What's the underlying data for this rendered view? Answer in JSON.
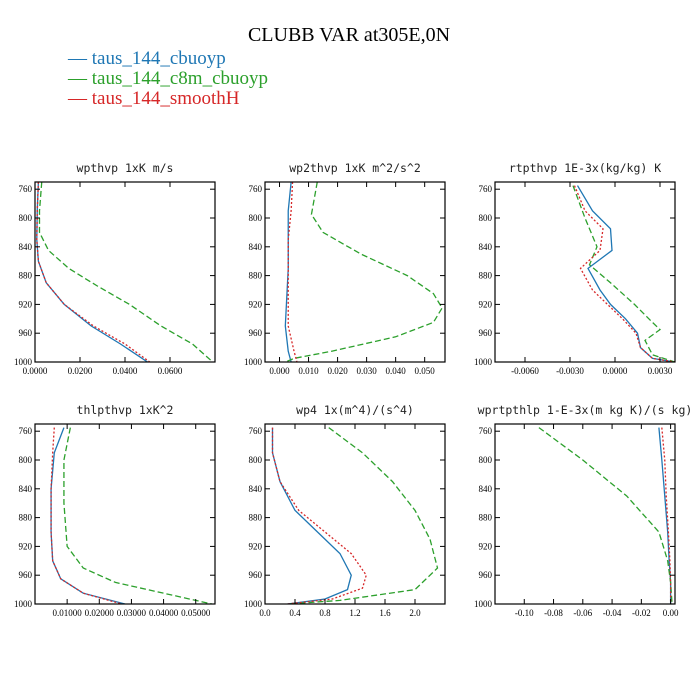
{
  "figure": {
    "title": "CLUBB VAR at305E,0N",
    "legend": [
      {
        "label": "— taus_144_cbuoyp",
        "color": "#1f77b4"
      },
      {
        "label": "— taus_144_c8m_cbuoyp",
        "color": "#2ca02c"
      },
      {
        "label": "— taus_144_smoothH",
        "color": "#d62728"
      }
    ]
  },
  "chart_data": [
    {
      "type": "line",
      "title": "wpthvp   1xK m/s",
      "xlim": [
        0,
        0.08
      ],
      "ylim": [
        1000,
        750
      ],
      "xticks": [
        0,
        0.02,
        0.04,
        0.06
      ],
      "xtick_labels": [
        "0.0000",
        "0.0200",
        "0.0400",
        "0.0600"
      ],
      "yticks": [
        760,
        800,
        840,
        880,
        920,
        960,
        1000
      ],
      "series": [
        {
          "name": "taus_144_cbuoyp",
          "color": "#1f77b4",
          "dash": "",
          "points": [
            [
              0.0015,
              750
            ],
            [
              0.001,
              790
            ],
            [
              0.0008,
              830
            ],
            [
              0.0015,
              860
            ],
            [
              0.005,
              890
            ],
            [
              0.013,
              920
            ],
            [
              0.025,
              950
            ],
            [
              0.038,
              975
            ],
            [
              0.05,
              1000
            ]
          ]
        },
        {
          "name": "taus_144_c8m_cbuoyp",
          "color": "#2ca02c",
          "dash": "6,3",
          "points": [
            [
              0.003,
              750
            ],
            [
              0.002,
              790
            ],
            [
              0.002,
              820
            ],
            [
              0.006,
              845
            ],
            [
              0.015,
              870
            ],
            [
              0.028,
              895
            ],
            [
              0.042,
              920
            ],
            [
              0.056,
              950
            ],
            [
              0.07,
              975
            ],
            [
              0.079,
              1000
            ]
          ]
        },
        {
          "name": "taus_144_smoothH",
          "color": "#d62728",
          "dash": "2,2",
          "points": [
            [
              0.0015,
              750
            ],
            [
              0.001,
              790
            ],
            [
              0.0008,
              830
            ],
            [
              0.0015,
              860
            ],
            [
              0.005,
              890
            ],
            [
              0.013,
              920
            ],
            [
              0.026,
              950
            ],
            [
              0.04,
              975
            ],
            [
              0.051,
              1000
            ]
          ]
        }
      ]
    },
    {
      "type": "line",
      "title": "wp2thvp   1xK m^2/s^2",
      "xlim": [
        -0.005,
        0.057
      ],
      "ylim": [
        1000,
        750
      ],
      "xticks": [
        0,
        0.01,
        0.02,
        0.03,
        0.04,
        0.05
      ],
      "xtick_labels": [
        "0.000",
        "0.010",
        "0.020",
        "0.030",
        "0.040",
        "0.050"
      ],
      "yticks": [
        760,
        800,
        840,
        880,
        920,
        960,
        1000
      ],
      "series": [
        {
          "name": "taus_144_cbuoyp",
          "color": "#1f77b4",
          "dash": "",
          "points": [
            [
              0.004,
              750
            ],
            [
              0.003,
              790
            ],
            [
              0.003,
              830
            ],
            [
              0.003,
              870
            ],
            [
              0.0025,
              910
            ],
            [
              0.002,
              950
            ],
            [
              0.003,
              985
            ],
            [
              0.004,
              1000
            ]
          ]
        },
        {
          "name": "taus_144_c8m_cbuoyp",
          "color": "#2ca02c",
          "dash": "6,3",
          "points": [
            [
              0.013,
              750
            ],
            [
              0.011,
              795
            ],
            [
              0.015,
              820
            ],
            [
              0.028,
              850
            ],
            [
              0.044,
              880
            ],
            [
              0.053,
              905
            ],
            [
              0.056,
              925
            ],
            [
              0.053,
              945
            ],
            [
              0.04,
              965
            ],
            [
              0.018,
              985
            ],
            [
              0.005,
              995
            ],
            [
              0.002,
              1000
            ]
          ]
        },
        {
          "name": "taus_144_smoothH",
          "color": "#d62728",
          "dash": "2,2",
          "points": [
            [
              0.0045,
              750
            ],
            [
              0.004,
              790
            ],
            [
              0.003,
              830
            ],
            [
              0.003,
              870
            ],
            [
              0.003,
              910
            ],
            [
              0.003,
              950
            ],
            [
              0.005,
              985
            ],
            [
              0.006,
              1000
            ]
          ]
        }
      ]
    },
    {
      "type": "line",
      "title": "rtpthvp   1E-3x(kg/kg) K",
      "xlim": [
        -0.008,
        0.004
      ],
      "ylim": [
        1000,
        750
      ],
      "xticks": [
        -0.006,
        -0.003,
        0,
        0.003
      ],
      "xtick_labels": [
        "-0.0060",
        "-0.0030",
        "0.0000",
        "0.0030"
      ],
      "yticks": [
        760,
        800,
        840,
        880,
        920,
        960,
        1000
      ],
      "series": [
        {
          "name": "taus_144_cbuoyp",
          "color": "#1f77b4",
          "dash": "",
          "points": [
            [
              -0.0025,
              755
            ],
            [
              -0.0015,
              790
            ],
            [
              -0.0003,
              815
            ],
            [
              -0.0002,
              845
            ],
            [
              -0.0018,
              870
            ],
            [
              -0.001,
              900
            ],
            [
              -0.0003,
              920
            ],
            [
              0.0007,
              940
            ],
            [
              0.0015,
              960
            ],
            [
              0.0017,
              980
            ],
            [
              0.0025,
              995
            ],
            [
              0.004,
              1000
            ]
          ]
        },
        {
          "name": "taus_144_c8m_cbuoyp",
          "color": "#2ca02c",
          "dash": "6,3",
          "points": [
            [
              -0.0028,
              755
            ],
            [
              -0.002,
              800
            ],
            [
              -0.0012,
              840
            ],
            [
              -0.0017,
              865
            ],
            [
              -0.0003,
              890
            ],
            [
              0.0013,
              920
            ],
            [
              0.0025,
              945
            ],
            [
              0.003,
              955
            ],
            [
              0.002,
              970
            ],
            [
              0.0025,
              990
            ],
            [
              0.004,
              1000
            ]
          ]
        },
        {
          "name": "taus_144_smoothH",
          "color": "#d62728",
          "dash": "2,2",
          "points": [
            [
              -0.0027,
              755
            ],
            [
              -0.002,
              790
            ],
            [
              -0.0008,
              815
            ],
            [
              -0.001,
              845
            ],
            [
              -0.0023,
              870
            ],
            [
              -0.0015,
              900
            ],
            [
              -0.0005,
              920
            ],
            [
              0.0005,
              940
            ],
            [
              0.0014,
              960
            ],
            [
              0.0017,
              980
            ],
            [
              0.0025,
              995
            ],
            [
              0.004,
              1000
            ]
          ]
        }
      ]
    },
    {
      "type": "line",
      "title": "thlpthvp   1xK^2",
      "xlim": [
        0,
        0.056
      ],
      "ylim": [
        1000,
        750
      ],
      "xticks": [
        0.01,
        0.02,
        0.03,
        0.04,
        0.05
      ],
      "xtick_labels": [
        "0.01000",
        "0.02000",
        "0.03000",
        "0.04000",
        "0.05000"
      ],
      "yticks": [
        760,
        800,
        840,
        880,
        920,
        960,
        1000
      ],
      "series": [
        {
          "name": "taus_144_cbuoyp",
          "color": "#1f77b4",
          "dash": "",
          "points": [
            [
              0.009,
              755
            ],
            [
              0.006,
              790
            ],
            [
              0.005,
              840
            ],
            [
              0.005,
              900
            ],
            [
              0.0055,
              940
            ],
            [
              0.008,
              965
            ],
            [
              0.015,
              985
            ],
            [
              0.028,
              1000
            ]
          ]
        },
        {
          "name": "taus_144_c8m_cbuoyp",
          "color": "#2ca02c",
          "dash": "6,3",
          "points": [
            [
              0.011,
              755
            ],
            [
              0.009,
              800
            ],
            [
              0.009,
              860
            ],
            [
              0.01,
              920
            ],
            [
              0.015,
              950
            ],
            [
              0.025,
              970
            ],
            [
              0.04,
              985
            ],
            [
              0.055,
              1000
            ]
          ]
        },
        {
          "name": "taus_144_smoothH",
          "color": "#d62728",
          "dash": "2,2",
          "points": [
            [
              0.006,
              755
            ],
            [
              0.0055,
              790
            ],
            [
              0.005,
              840
            ],
            [
              0.005,
              900
            ],
            [
              0.0055,
              940
            ],
            [
              0.008,
              965
            ],
            [
              0.015,
              985
            ],
            [
              0.027,
              1000
            ]
          ]
        }
      ]
    },
    {
      "type": "line",
      "title": "wp4   1x(m^4)/(s^4)",
      "xlim": [
        0,
        2.4
      ],
      "ylim": [
        1000,
        750
      ],
      "xticks": [
        0,
        0.4,
        0.8,
        1.2,
        1.6,
        2.0
      ],
      "xtick_labels": [
        "0.0",
        "0.4",
        "0.8",
        "1.2",
        "1.6",
        "2.0"
      ],
      "yticks": [
        760,
        800,
        840,
        880,
        920,
        960,
        1000
      ],
      "series": [
        {
          "name": "taus_144_cbuoyp",
          "color": "#1f77b4",
          "dash": "",
          "points": [
            [
              0.1,
              755
            ],
            [
              0.1,
              790
            ],
            [
              0.2,
              830
            ],
            [
              0.4,
              870
            ],
            [
              0.7,
              900
            ],
            [
              1.0,
              930
            ],
            [
              1.15,
              960
            ],
            [
              1.1,
              980
            ],
            [
              0.8,
              993
            ],
            [
              0.3,
              1000
            ]
          ]
        },
        {
          "name": "taus_144_c8m_cbuoyp",
          "color": "#2ca02c",
          "dash": "6,3",
          "points": [
            [
              0.85,
              755
            ],
            [
              1.3,
              790
            ],
            [
              1.7,
              830
            ],
            [
              2.0,
              870
            ],
            [
              2.2,
              910
            ],
            [
              2.3,
              950
            ],
            [
              2.0,
              980
            ],
            [
              1.0,
              995
            ],
            [
              0.3,
              1000
            ]
          ]
        },
        {
          "name": "taus_144_smoothH",
          "color": "#d62728",
          "dash": "2,2",
          "points": [
            [
              0.1,
              755
            ],
            [
              0.1,
              790
            ],
            [
              0.2,
              830
            ],
            [
              0.45,
              870
            ],
            [
              0.8,
              900
            ],
            [
              1.15,
              930
            ],
            [
              1.35,
              960
            ],
            [
              1.3,
              978
            ],
            [
              0.9,
              993
            ],
            [
              0.3,
              1000
            ]
          ]
        }
      ]
    },
    {
      "type": "line",
      "title": "wprtpthlp   1-E-3x(m kg K)/(s kg)",
      "xlim": [
        -0.12,
        0.003
      ],
      "ylim": [
        1000,
        750
      ],
      "xticks": [
        -0.1,
        -0.08,
        -0.06,
        -0.04,
        -0.02,
        0
      ],
      "xtick_labels": [
        "-0.10",
        "-0.08",
        "-0.06",
        "-0.04",
        "-0.02",
        "0.00"
      ],
      "yticks": [
        760,
        800,
        840,
        880,
        920,
        960,
        1000
      ],
      "series": [
        {
          "name": "taus_144_cbuoyp",
          "color": "#1f77b4",
          "dash": "",
          "points": [
            [
              -0.008,
              755
            ],
            [
              -0.006,
              800
            ],
            [
              -0.004,
              850
            ],
            [
              -0.002,
              900
            ],
            [
              -0.001,
              940
            ],
            [
              0.0,
              970
            ],
            [
              0.0,
              1000
            ]
          ]
        },
        {
          "name": "taus_144_c8m_cbuoyp",
          "color": "#2ca02c",
          "dash": "6,3",
          "points": [
            [
              -0.09,
              755
            ],
            [
              -0.06,
              800
            ],
            [
              -0.03,
              850
            ],
            [
              -0.008,
              900
            ],
            [
              -0.002,
              940
            ],
            [
              0.0,
              970
            ],
            [
              0.001,
              1000
            ]
          ]
        },
        {
          "name": "taus_144_smoothH",
          "color": "#d62728",
          "dash": "2,2",
          "points": [
            [
              -0.006,
              755
            ],
            [
              -0.004,
              800
            ],
            [
              -0.003,
              850
            ],
            [
              -0.0015,
              900
            ],
            [
              -0.0005,
              940
            ],
            [
              0.0,
              970
            ],
            [
              0.0,
              1000
            ]
          ]
        }
      ]
    }
  ]
}
